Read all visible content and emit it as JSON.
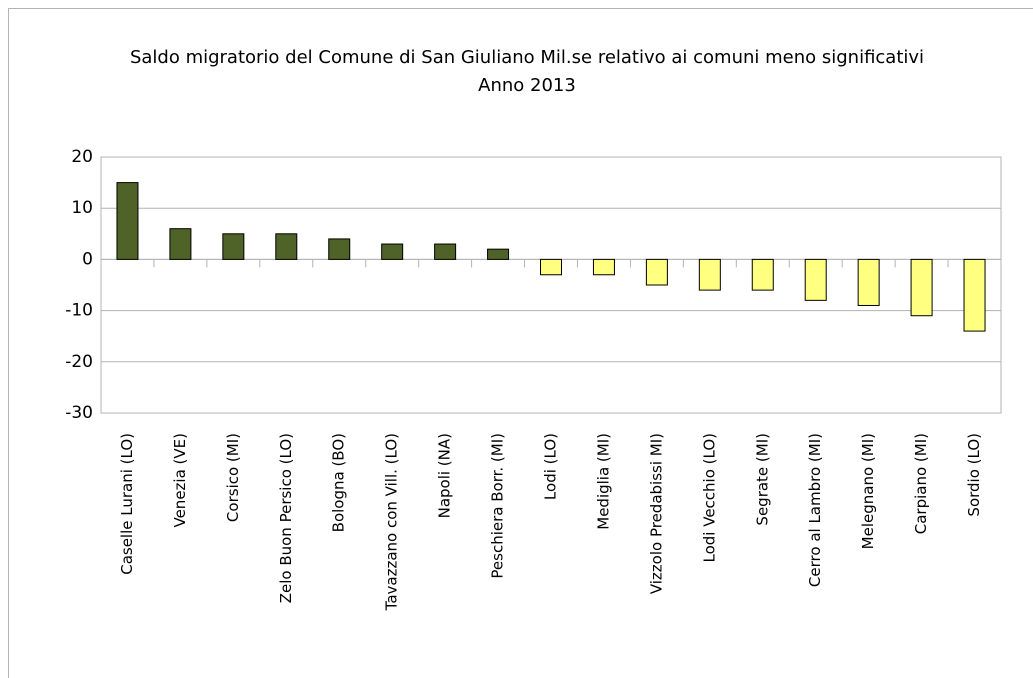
{
  "chart_data": {
    "type": "bar",
    "title": "Saldo migratorio del Comune di San Giuliano Mil.se relativo ai comuni meno significativi",
    "subtitle": "Anno 2013",
    "categories": [
      "Caselle Lurani (LO)",
      "Venezia (VE)",
      "Corsico (MI)",
      "Zelo Buon Persico (LO)",
      "Bologna (BO)",
      "Tavazzano con Vill. (LO)",
      "Napoli (NA)",
      "Peschiera Borr. (MI)",
      "Lodi (LO)",
      "Mediglia (MI)",
      "Vizzolo Predabissi MI)",
      "Lodi Vecchio (LO)",
      "Segrate (MI)",
      "Cerro al Lambro (MI)",
      "Melegnano (MI)",
      "Carpiano (MI)",
      "Sordio (LO)"
    ],
    "values": [
      15,
      6,
      5,
      5,
      4,
      3,
      3,
      2,
      -3,
      -3,
      -5,
      -6,
      -6,
      -8,
      -9,
      -11,
      -14
    ],
    "colors": [
      "#4f6228",
      "#4f6228",
      "#4f6228",
      "#4f6228",
      "#4f6228",
      "#4f6228",
      "#4f6228",
      "#4f6228",
      "#ffff80",
      "#ffff80",
      "#ffff80",
      "#ffff80",
      "#ffff80",
      "#ffff80",
      "#ffff80",
      "#ffff80",
      "#ffff80"
    ],
    "ylim": [
      -30,
      20
    ],
    "yticks": [
      -30,
      -20,
      -10,
      0,
      10,
      20
    ],
    "grid": true
  }
}
